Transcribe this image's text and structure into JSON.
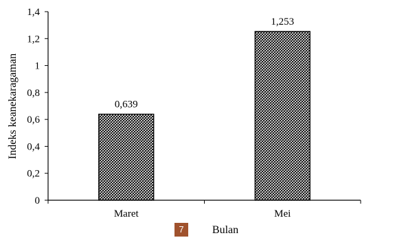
{
  "page_badge": "7",
  "chart_data": {
    "type": "bar",
    "categories": [
      "Maret",
      "Mei"
    ],
    "values": [
      0.639,
      1.253
    ],
    "data_labels": [
      "0,639",
      "1,253"
    ],
    "xlabel": "Bulan",
    "ylabel": "Indeks keanekaragaman",
    "ylim": [
      0,
      1.4
    ],
    "yticks": [
      0,
      0.2,
      0.4,
      0.6,
      0.8,
      1,
      1.2,
      1.4
    ],
    "ytick_labels": [
      "0",
      "0,2",
      "0,4",
      "0,6",
      "0,8",
      "1",
      "1,2",
      "1,4"
    ],
    "grid": false,
    "bar_fill": "crosshatch",
    "colors": {
      "bar_stroke": "#000000",
      "axis": "#000000",
      "badge": "#a0522d"
    }
  }
}
